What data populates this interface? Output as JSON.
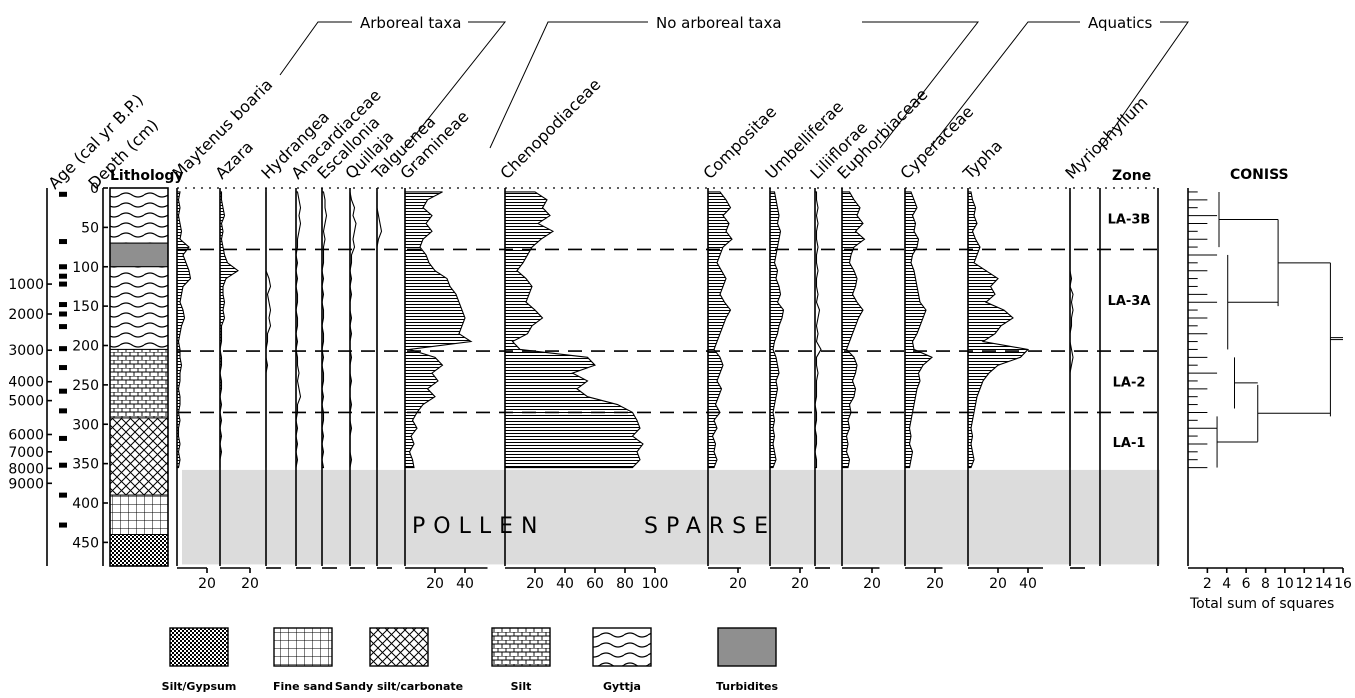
{
  "chart_data": {
    "type": "area",
    "title": "",
    "y_axis": {
      "age_label": "Age (cal yr B.P.)",
      "depth_label": "Depth (cm)",
      "depth_range": [
        0,
        480
      ],
      "depth_ticks": [
        "0",
        "50",
        "100",
        "150",
        "200",
        "250",
        "300",
        "350",
        "400",
        "450"
      ],
      "age_ticks": [
        {
          "label": "1000",
          "depth": 122
        },
        {
          "label": "2000",
          "depth": 160
        },
        {
          "label": "3000",
          "depth": 206
        },
        {
          "label": "4000",
          "depth": 246
        },
        {
          "label": "5000",
          "depth": 270
        },
        {
          "label": "6000",
          "depth": 313
        },
        {
          "label": "7000",
          "depth": 335
        },
        {
          "label": "8000",
          "depth": 356
        },
        {
          "label": "9000",
          "depth": 375
        }
      ],
      "date_depths": [
        8,
        68,
        100,
        112,
        122,
        148,
        160,
        176,
        204,
        228,
        258,
        283,
        318,
        352,
        390,
        428
      ]
    },
    "lithology": {
      "title": "Lithology",
      "units": [
        {
          "type": "gyttja",
          "top": 0,
          "bottom": 70
        },
        {
          "type": "turbidites",
          "top": 70,
          "bottom": 100
        },
        {
          "type": "gyttja",
          "top": 100,
          "bottom": 205
        },
        {
          "type": "silt",
          "top": 205,
          "bottom": 292
        },
        {
          "type": "sandy_silt_carbonate",
          "top": 292,
          "bottom": 390
        },
        {
          "type": "fine_sand",
          "top": 390,
          "bottom": 440
        },
        {
          "type": "silt_gypsum",
          "top": 440,
          "bottom": 480
        }
      ]
    },
    "group_labels": [
      "Arboreal taxa",
      "No arboreal taxa",
      "Aquatics"
    ],
    "depth_samples": [
      5,
      15,
      25,
      35,
      45,
      55,
      65,
      75,
      85,
      95,
      105,
      115,
      125,
      135,
      145,
      155,
      165,
      175,
      185,
      195,
      205,
      215,
      225,
      235,
      245,
      255,
      265,
      275,
      285,
      295,
      305,
      315,
      325,
      335,
      345,
      355
    ],
    "series": [
      {
        "name": "Maytenus boaria",
        "xmax": 20,
        "ticks": [
          20
        ],
        "values": [
          2,
          1,
          2,
          1,
          2,
          3,
          2,
          8,
          4,
          6,
          8,
          9,
          4,
          3,
          2,
          4,
          5,
          3,
          2,
          1,
          2,
          2,
          3,
          2,
          2,
          1,
          2,
          2,
          1,
          2,
          1,
          1,
          2,
          1,
          2,
          1
        ]
      },
      {
        "name": "Azara",
        "xmax": 20,
        "ticks": [
          20
        ],
        "values": [
          1,
          1,
          2,
          3,
          1,
          2,
          1,
          2,
          3,
          5,
          12,
          4,
          2,
          2,
          3,
          2,
          3,
          1,
          1,
          1,
          0,
          1,
          1,
          0,
          1,
          1,
          0,
          1,
          0,
          1,
          0,
          1,
          0,
          1,
          0,
          0
        ]
      },
      {
        "name": "Hydrangea",
        "xmax": 10,
        "ticks": [],
        "values": [
          0,
          0,
          0,
          0,
          0,
          0,
          0,
          0,
          0,
          0,
          0,
          2,
          3,
          1,
          2,
          3,
          2,
          3,
          1,
          1,
          0,
          0,
          1,
          0,
          0,
          0,
          0,
          0,
          0,
          0,
          0,
          0,
          0,
          0,
          0,
          0
        ]
      },
      {
        "name": "Anacardiaceae",
        "xmax": 10,
        "ticks": [],
        "values": [
          1,
          2,
          3,
          2,
          3,
          2,
          1,
          1,
          0,
          1,
          0,
          1,
          0,
          1,
          1,
          0,
          1,
          1,
          0,
          1,
          0,
          1,
          1,
          2,
          1,
          2,
          3,
          1,
          1,
          0,
          1,
          0,
          1,
          0,
          1,
          0
        ]
      },
      {
        "name": "Escallonia",
        "xmax": 10,
        "ticks": [],
        "values": [
          1,
          2,
          2,
          3,
          2,
          1,
          2,
          1,
          1,
          1,
          0,
          1,
          0,
          1,
          0,
          1,
          1,
          0,
          1,
          1,
          0,
          1,
          0,
          1,
          1,
          0,
          1,
          0,
          1,
          1,
          0,
          1,
          0,
          1,
          0,
          1
        ]
      },
      {
        "name": "Quillaja",
        "xmax": 10,
        "ticks": [],
        "values": [
          0,
          1,
          3,
          2,
          4,
          3,
          2,
          3,
          1,
          1,
          0,
          1,
          0,
          1,
          0,
          0,
          1,
          0,
          1,
          0,
          0,
          1,
          0,
          0,
          1,
          0,
          0,
          1,
          0,
          0,
          1,
          0,
          0,
          0,
          1,
          0
        ]
      },
      {
        "name": "Talguenea",
        "xmax": 10,
        "ticks": [],
        "values": [
          0,
          0,
          0,
          1,
          2,
          3,
          1,
          0,
          0,
          0,
          0,
          0,
          0,
          0,
          0,
          0,
          0,
          0,
          0,
          0,
          0,
          0,
          0,
          0,
          0,
          0,
          0,
          0,
          0,
          0,
          0,
          0,
          0,
          0,
          0,
          0
        ]
      },
      {
        "name": "Gramineae",
        "xmax": 55,
        "ticks": [
          20,
          40
        ],
        "values": [
          25,
          15,
          12,
          18,
          14,
          18,
          12,
          10,
          14,
          16,
          20,
          28,
          30,
          34,
          36,
          38,
          40,
          38,
          36,
          44,
          3,
          20,
          25,
          18,
          22,
          15,
          20,
          12,
          8,
          5,
          8,
          4,
          6,
          3,
          5,
          6
        ]
      },
      {
        "name": "Chenopodiaceae",
        "xmax": 100,
        "ticks": [
          20,
          40,
          60,
          80,
          100
        ],
        "values": [
          20,
          28,
          25,
          30,
          22,
          32,
          24,
          18,
          15,
          12,
          8,
          14,
          18,
          16,
          14,
          20,
          25,
          18,
          15,
          5,
          10,
          55,
          60,
          45,
          55,
          48,
          55,
          75,
          85,
          88,
          90,
          85,
          92,
          88,
          90,
          85
        ]
      },
      {
        "name": "Compositae",
        "xmax": 22,
        "ticks": [
          20
        ],
        "values": [
          8,
          12,
          15,
          10,
          14,
          12,
          16,
          10,
          8,
          6,
          9,
          12,
          10,
          8,
          11,
          15,
          12,
          10,
          8,
          6,
          4,
          8,
          10,
          8,
          6,
          9,
          7,
          5,
          8,
          4,
          6,
          3,
          5,
          4,
          6,
          4
        ]
      },
      {
        "name": "Umbelliferae",
        "xmax": 22,
        "ticks": [
          20
        ],
        "values": [
          3,
          4,
          5,
          6,
          5,
          7,
          6,
          5,
          4,
          3,
          5,
          4,
          6,
          7,
          5,
          9,
          8,
          6,
          5,
          3,
          2,
          4,
          5,
          6,
          4,
          5,
          4,
          3,
          2,
          3,
          2,
          3,
          2,
          3,
          4,
          2
        ]
      },
      {
        "name": "Liliiflorae",
        "xmax": 10,
        "ticks": [],
        "values": [
          1,
          1,
          2,
          1,
          2,
          1,
          1,
          2,
          1,
          1,
          2,
          1,
          1,
          2,
          1,
          3,
          2,
          1,
          2,
          1,
          4,
          1,
          1,
          2,
          1,
          1,
          1,
          0,
          1,
          1,
          0,
          1,
          1,
          0,
          1,
          1
        ]
      },
      {
        "name": "Euphorbiaceae",
        "xmax": 25,
        "ticks": [
          20
        ],
        "values": [
          5,
          8,
          12,
          10,
          14,
          9,
          15,
          8,
          6,
          5,
          8,
          10,
          9,
          7,
          10,
          14,
          11,
          9,
          7,
          5,
          3,
          8,
          10,
          9,
          7,
          9,
          8,
          5,
          6,
          4,
          5,
          3,
          4,
          3,
          5,
          4
        ]
      },
      {
        "name": "Cyperaceae",
        "xmax": 25,
        "ticks": [
          20
        ],
        "values": [
          4,
          6,
          8,
          5,
          7,
          6,
          9,
          8,
          5,
          4,
          6,
          7,
          8,
          9,
          10,
          14,
          12,
          10,
          8,
          5,
          6,
          18,
          12,
          9,
          10,
          8,
          7,
          6,
          5,
          4,
          3,
          4,
          3,
          5,
          4,
          3
        ]
      },
      {
        "name": "Typha",
        "xmax": 50,
        "ticks": [
          20,
          40
        ],
        "values": [
          2,
          3,
          5,
          4,
          6,
          3,
          5,
          8,
          6,
          4,
          12,
          20,
          15,
          18,
          12,
          24,
          30,
          22,
          18,
          10,
          40,
          35,
          20,
          14,
          10,
          8,
          6,
          5,
          4,
          3,
          2,
          3,
          2,
          3,
          4,
          2
        ]
      },
      {
        "name": "Myriophyllum",
        "xmax": 10,
        "ticks": [],
        "values": [
          0,
          0,
          0,
          0,
          0,
          0,
          0,
          0,
          0,
          0,
          0,
          1,
          0,
          2,
          1,
          2,
          1,
          1,
          0,
          0,
          1,
          2,
          1,
          0,
          0,
          0,
          0,
          0,
          0,
          0,
          0,
          0,
          0,
          0,
          0,
          0
        ]
      }
    ],
    "zones": {
      "title": "Zone",
      "items": [
        {
          "label": "LA-3B",
          "top": 0,
          "bottom": 78
        },
        {
          "label": "LA-3A",
          "top": 78,
          "bottom": 207
        },
        {
          "label": "LA-2",
          "top": 207,
          "bottom": 285
        },
        {
          "label": "LA-1",
          "top": 285,
          "bottom": 360
        }
      ],
      "boundaries": [
        78,
        207,
        285
      ]
    },
    "sparse_band": {
      "top": 358,
      "bottom": 478,
      "text_left": "POLLEN",
      "text_right": "SPARSE"
    },
    "coniss": {
      "title": "CONISS",
      "xlabel": "Total sum of squares",
      "xlim": [
        0,
        16
      ],
      "ticks": [
        "2",
        "4",
        "6",
        "8",
        "10",
        "12",
        "14",
        "16"
      ]
    },
    "legend": [
      {
        "type": "silt_gypsum",
        "label": "Silt/Gypsum"
      },
      {
        "type": "fine_sand",
        "label": "Fine sand"
      },
      {
        "type": "sandy_silt_carbonate",
        "label": "Sandy silt/carbonate"
      },
      {
        "type": "silt",
        "label": "Silt"
      },
      {
        "type": "gyttja",
        "label": "Gyttja"
      },
      {
        "type": "turbidites",
        "label": "Turbidites"
      }
    ]
  }
}
